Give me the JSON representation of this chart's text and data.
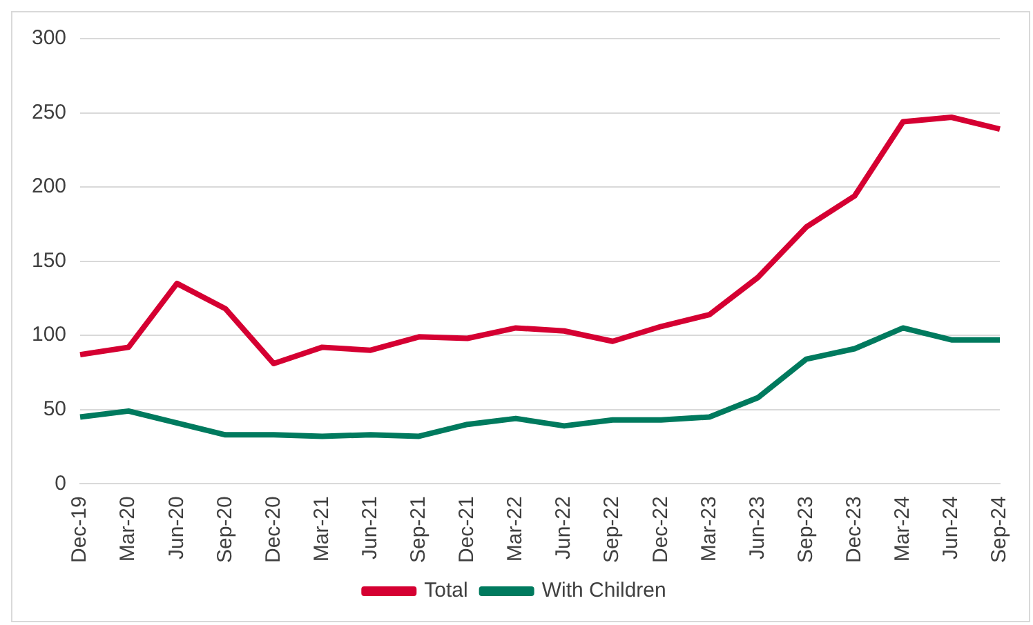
{
  "chart_data": {
    "type": "line",
    "categories": [
      "Dec-19",
      "Mar-20",
      "Jun-20",
      "Sep-20",
      "Dec-20",
      "Mar-21",
      "Jun-21",
      "Sep-21",
      "Dec-21",
      "Mar-22",
      "Jun-22",
      "Sep-22",
      "Dec-22",
      "Mar-23",
      "Jun-23",
      "Sep-23",
      "Dec-23",
      "Mar-24",
      "Jun-24",
      "Sep-24"
    ],
    "series": [
      {
        "name": "Total",
        "color": "#d50032",
        "values": [
          87,
          92,
          135,
          118,
          81,
          92,
          90,
          99,
          98,
          105,
          103,
          96,
          106,
          114,
          139,
          173,
          194,
          244,
          247,
          239
        ]
      },
      {
        "name": "With Children",
        "color": "#007a5e",
        "values": [
          45,
          49,
          41,
          33,
          33,
          32,
          33,
          32,
          40,
          44,
          39,
          43,
          43,
          45,
          58,
          84,
          91,
          105,
          97,
          97
        ]
      }
    ],
    "ylim": [
      0,
      300
    ],
    "yticks": [
      0,
      50,
      100,
      150,
      200,
      250,
      300
    ],
    "grid": "y",
    "legend": "bottom",
    "marker": "none",
    "line_style": "solid"
  }
}
